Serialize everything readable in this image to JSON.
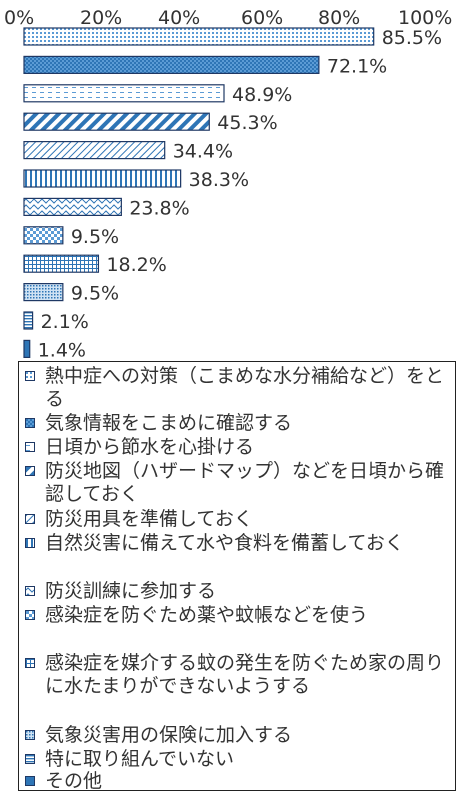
{
  "chart_data": {
    "type": "bar",
    "orientation": "horizontal",
    "xlim": [
      0,
      100
    ],
    "ticks": [
      "0%",
      "20%",
      "40%",
      "60%",
      "80%",
      "100%"
    ],
    "categories": [
      "熱中症への対策（こまめな水分補給など）をとる",
      "気象情報をこまめに確認する",
      "日頃から節水を心掛ける",
      "防災地図（ハザードマップ）などを日頃から確認しておく",
      "防災用具を準備しておく",
      "自然災害に備えて水や食料を備蓄しておく",
      "防災訓練に参加する",
      "感染症を防ぐため薬や蚊帳などを使う",
      "感染症を媒介する蚊の発生を防ぐため家の周りに水たまりができないようする",
      "気象災害用の保険に加入する",
      "特に取り組んでいない",
      "その他"
    ],
    "values": [
      85.5,
      72.1,
      48.9,
      45.3,
      34.4,
      38.3,
      23.8,
      9.5,
      18.2,
      9.5,
      2.1,
      1.4
    ],
    "value_labels": [
      "85.5%",
      "72.1%",
      "48.9%",
      "45.3%",
      "34.4%",
      "38.3%",
      "23.8%",
      "9.5%",
      "18.2%",
      "9.5%",
      "2.1%",
      "1.4%"
    ],
    "patterns": [
      "dots",
      "solid-check",
      "dash-h",
      "diag-thick",
      "diag-thin",
      "vert",
      "wave",
      "check",
      "grid",
      "dots-dense",
      "horiz",
      "solid"
    ],
    "colors": {
      "bar_fill": "#5b9bd5",
      "bar_dark": "#1f4e79",
      "bar_border": "#1f3864",
      "text": "#333333"
    },
    "grid": false,
    "legend_position": "bottom"
  }
}
